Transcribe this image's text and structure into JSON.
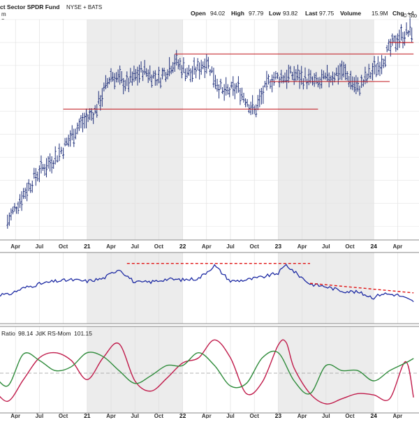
{
  "header": {
    "title": "ct Sector SPDR Fund",
    "exchange": "NYSE + BATS",
    "period_note": "m",
    "sub_note": "5",
    "watermark": "© Sto",
    "stats": [
      {
        "label": "Open",
        "value": "94.02"
      },
      {
        "label": "High",
        "value": "97.79"
      },
      {
        "label": "Low",
        "value": "93.82"
      },
      {
        "label": "Last",
        "value": "97.75"
      },
      {
        "label": "Volume",
        "value": "15.9M"
      },
      {
        "label": "Chg",
        "value": "+4."
      }
    ]
  },
  "colors": {
    "price_bar": "#1f2f7a",
    "rs_line": "#1d2aa3",
    "support_line": "#c0161b",
    "trend_dash": "#e01010",
    "ratio_line": "#c01a4a",
    "momentum_line": "#2e8b3a",
    "shade": "#ececec"
  },
  "x_axis_ticks": [
    {
      "label": "Apr",
      "year": false
    },
    {
      "label": "Jul",
      "year": false
    },
    {
      "label": "Oct",
      "year": false
    },
    {
      "label": "21",
      "year": true
    },
    {
      "label": "Apr",
      "year": false
    },
    {
      "label": "Jul",
      "year": false
    },
    {
      "label": "Oct",
      "year": false
    },
    {
      "label": "22",
      "year": true
    },
    {
      "label": "Apr",
      "year": false
    },
    {
      "label": "Jul",
      "year": false
    },
    {
      "label": "Oct",
      "year": false
    },
    {
      "label": "23",
      "year": true
    },
    {
      "label": "Apr",
      "year": false
    },
    {
      "label": "Jul",
      "year": false
    },
    {
      "label": "Oct",
      "year": false
    },
    {
      "label": "24",
      "year": true
    },
    {
      "label": "Apr",
      "year": false
    }
  ],
  "indicator": {
    "ratio_label": "Ratio",
    "ratio_value": "98.14",
    "momentum_label": "JdK RS-Mom",
    "momentum_value": "101.15"
  },
  "chart_data": [
    {
      "type": "bar",
      "subtype": "ohlc",
      "title": "",
      "x_range": [
        "2020-01",
        "2024-06"
      ],
      "y_range": [
        52,
        100
      ],
      "approx_close_path": [
        {
          "t": "2020-03",
          "v": 56
        },
        {
          "t": "2020-05",
          "v": 62
        },
        {
          "t": "2020-07",
          "v": 67
        },
        {
          "t": "2020-09",
          "v": 70
        },
        {
          "t": "2020-10",
          "v": 72
        },
        {
          "t": "2020-12",
          "v": 77
        },
        {
          "t": "2021-02",
          "v": 80
        },
        {
          "t": "2021-04",
          "v": 88
        },
        {
          "t": "2021-06",
          "v": 86
        },
        {
          "t": "2021-08",
          "v": 89
        },
        {
          "t": "2021-10",
          "v": 87
        },
        {
          "t": "2021-12",
          "v": 91
        },
        {
          "t": "2022-02",
          "v": 88
        },
        {
          "t": "2022-04",
          "v": 91
        },
        {
          "t": "2022-06",
          "v": 84
        },
        {
          "t": "2022-08",
          "v": 85
        },
        {
          "t": "2022-10",
          "v": 80
        },
        {
          "t": "2022-12",
          "v": 87
        },
        {
          "t": "2023-03",
          "v": 88
        },
        {
          "t": "2023-06",
          "v": 86
        },
        {
          "t": "2023-09",
          "v": 89
        },
        {
          "t": "2023-11",
          "v": 85
        },
        {
          "t": "2024-02",
          "v": 91
        },
        {
          "t": "2024-04",
          "v": 96
        },
        {
          "t": "2024-06",
          "v": 97.75
        }
      ],
      "horizontal_lines": [
        {
          "level": 80.5,
          "from": "2020-10",
          "to": "2023-06"
        },
        {
          "level": 92.5,
          "from": "2021-12",
          "to": "2024-06"
        },
        {
          "level": 86.5,
          "from": "2022-12",
          "to": "2024-03"
        },
        {
          "level": 95,
          "from": "2024-03",
          "to": "2024-06"
        }
      ]
    },
    {
      "type": "line",
      "title": "",
      "series": [
        {
          "name": "",
          "points": [
            {
              "t": "2020-01",
              "v": 0.42
            },
            {
              "t": "2020-03",
              "v": 0.4
            },
            {
              "t": "2020-05",
              "v": 0.5
            },
            {
              "t": "2020-07",
              "v": 0.56
            },
            {
              "t": "2020-09",
              "v": 0.6
            },
            {
              "t": "2020-11",
              "v": 0.62
            },
            {
              "t": "2021-01",
              "v": 0.6
            },
            {
              "t": "2021-03",
              "v": 0.64
            },
            {
              "t": "2021-05",
              "v": 0.78
            },
            {
              "t": "2021-07",
              "v": 0.58
            },
            {
              "t": "2021-09",
              "v": 0.59
            },
            {
              "t": "2021-11",
              "v": 0.63
            },
            {
              "t": "2022-01",
              "v": 0.62
            },
            {
              "t": "2022-03",
              "v": 0.64
            },
            {
              "t": "2022-05",
              "v": 0.83
            },
            {
              "t": "2022-07",
              "v": 0.6
            },
            {
              "t": "2022-09",
              "v": 0.62
            },
            {
              "t": "2022-11",
              "v": 0.66
            },
            {
              "t": "2023-01",
              "v": 0.72
            },
            {
              "t": "2023-02",
              "v": 0.84
            },
            {
              "t": "2023-03",
              "v": 0.74
            },
            {
              "t": "2023-05",
              "v": 0.56
            },
            {
              "t": "2023-07",
              "v": 0.52
            },
            {
              "t": "2023-09",
              "v": 0.46
            },
            {
              "t": "2023-11",
              "v": 0.44
            },
            {
              "t": "2024-01",
              "v": 0.36
            },
            {
              "t": "2024-02",
              "v": 0.42
            },
            {
              "t": "2024-04",
              "v": 0.4
            },
            {
              "t": "2024-06",
              "v": 0.3
            }
          ]
        }
      ],
      "trendlines": [
        {
          "style": "dashed",
          "from": {
            "t": "2021-06",
            "v": 0.86
          },
          "to": "2023-05"
        },
        {
          "style": "dashed",
          "from": {
            "t": "2023-05",
            "v": 0.57
          },
          "to": {
            "t": "2024-06",
            "v": 0.43
          }
        }
      ]
    },
    {
      "type": "line",
      "title": "",
      "baseline": 100,
      "y_range": [
        97,
        103
      ],
      "series": [
        {
          "name": "Ratio",
          "last": 98.14,
          "points": [
            {
              "t": "2020-01",
              "v": 99.0
            },
            {
              "t": "2020-03",
              "v": 97.8
            },
            {
              "t": "2020-05",
              "v": 99.5
            },
            {
              "t": "2020-07",
              "v": 101.2
            },
            {
              "t": "2020-09",
              "v": 101.6
            },
            {
              "t": "2020-11",
              "v": 101.0
            },
            {
              "t": "2021-01",
              "v": 99.5
            },
            {
              "t": "2021-03",
              "v": 101.2
            },
            {
              "t": "2021-05",
              "v": 102.3
            },
            {
              "t": "2021-07",
              "v": 99.4
            },
            {
              "t": "2021-09",
              "v": 98.6
            },
            {
              "t": "2021-11",
              "v": 99.6
            },
            {
              "t": "2022-01",
              "v": 100.8
            },
            {
              "t": "2022-03",
              "v": 101.2
            },
            {
              "t": "2022-05",
              "v": 102.6
            },
            {
              "t": "2022-07",
              "v": 101.2
            },
            {
              "t": "2022-09",
              "v": 98.4
            },
            {
              "t": "2022-11",
              "v": 99.3
            },
            {
              "t": "2023-01",
              "v": 102.2
            },
            {
              "t": "2023-02",
              "v": 102.4
            },
            {
              "t": "2023-03",
              "v": 100.4
            },
            {
              "t": "2023-05",
              "v": 98.4
            },
            {
              "t": "2023-07",
              "v": 97.6
            },
            {
              "t": "2023-09",
              "v": 98.0
            },
            {
              "t": "2023-11",
              "v": 98.4
            },
            {
              "t": "2024-01",
              "v": 98.3
            },
            {
              "t": "2024-03",
              "v": 98.0
            },
            {
              "t": "2024-05",
              "v": 100.9
            },
            {
              "t": "2024-06",
              "v": 98.1
            }
          ]
        },
        {
          "name": "JdK RS-Mom",
          "last": 101.15,
          "points": [
            {
              "t": "2020-01",
              "v": 100.2
            },
            {
              "t": "2020-03",
              "v": 99.0
            },
            {
              "t": "2020-05",
              "v": 101.5
            },
            {
              "t": "2020-07",
              "v": 101.0
            },
            {
              "t": "2020-09",
              "v": 100.2
            },
            {
              "t": "2020-11",
              "v": 100.5
            },
            {
              "t": "2021-01",
              "v": 101.6
            },
            {
              "t": "2021-03",
              "v": 101.3
            },
            {
              "t": "2021-05",
              "v": 100.2
            },
            {
              "t": "2021-07",
              "v": 99.2
            },
            {
              "t": "2021-09",
              "v": 99.8
            },
            {
              "t": "2021-11",
              "v": 100.6
            },
            {
              "t": "2022-01",
              "v": 100.6
            },
            {
              "t": "2022-03",
              "v": 101.6
            },
            {
              "t": "2022-05",
              "v": 100.6
            },
            {
              "t": "2022-07",
              "v": 99.0
            },
            {
              "t": "2022-09",
              "v": 99.2
            },
            {
              "t": "2022-11",
              "v": 101.2
            },
            {
              "t": "2023-01",
              "v": 101.6
            },
            {
              "t": "2023-03",
              "v": 99.4
            },
            {
              "t": "2023-05",
              "v": 98.4
            },
            {
              "t": "2023-07",
              "v": 100.6
            },
            {
              "t": "2023-09",
              "v": 100.2
            },
            {
              "t": "2023-11",
              "v": 100.2
            },
            {
              "t": "2024-01",
              "v": 99.4
            },
            {
              "t": "2024-03",
              "v": 100.2
            },
            {
              "t": "2024-05",
              "v": 100.8
            },
            {
              "t": "2024-06",
              "v": 101.15
            }
          ]
        }
      ]
    }
  ]
}
